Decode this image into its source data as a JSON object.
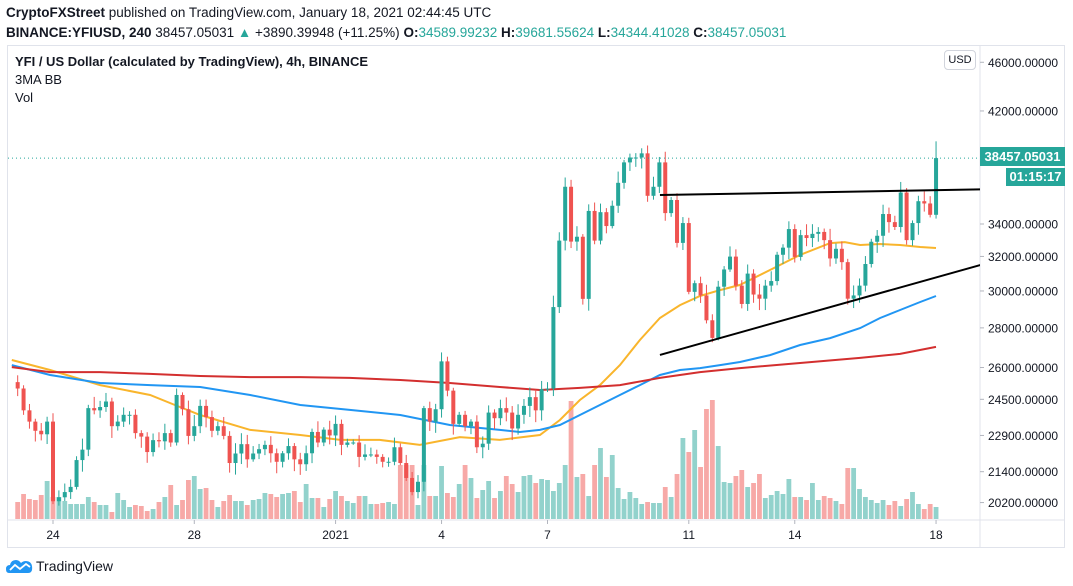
{
  "header": {
    "publisher": "CryptoFXStreet",
    "published_text": "published on TradingView.com, January 18, 2021 02:44:45 UTC",
    "symbol": "BINANCE:YFIUSD, 240",
    "last": "38457.05031",
    "change": "+3890.39948 (+11.25%)",
    "o_label": "O:",
    "o": "34589.99232",
    "h_label": "H:",
    "h": "39681.55624",
    "l_label": "L:",
    "l": "34344.41028",
    "c_label": "C:",
    "c": "38457.05031"
  },
  "legend": {
    "title": "YFI / US Dollar (calculated by TradingView), 4h, BINANCE",
    "indicator1": "3MA BB",
    "indicator2": "Vol"
  },
  "price_axis": {
    "currency": "USD",
    "last_price_label": "38457.05031",
    "countdown": "01:15:17"
  },
  "footer": {
    "brand": "TradingView"
  },
  "colors": {
    "up": "#26a69a",
    "down": "#ef5350",
    "ma_fast": "#f9b52c",
    "ma_mid": "#2196f3",
    "ma_slow": "#d32f2f",
    "trendline": "#000000",
    "brand": "#2196f3"
  },
  "chart_data": {
    "type": "candlestick",
    "interval": "4h",
    "y_scale": "log",
    "ylim": [
      19800,
      47000
    ],
    "grid": false,
    "y_ticks": [
      "46000.00000",
      "42000.00000",
      "34000.00000",
      "32000.00000",
      "30000.00000",
      "28000.00000",
      "26000.00000",
      "24500.00000",
      "22900.00000",
      "21400.00000",
      "20200.00000"
    ],
    "x_ticks": [
      "24",
      "28",
      "2021",
      "4",
      "7",
      "11",
      "14",
      "18"
    ],
    "first_open": 25300,
    "last_candle": {
      "open": 34589.99232,
      "high": 39681.55624,
      "low": 34344.41028,
      "close": 38457.05031
    },
    "closes": [
      25000,
      24000,
      23500,
      23100,
      22950,
      23500,
      20250,
      20400,
      20600,
      20800,
      21870,
      22300,
      24100,
      24000,
      24150,
      24400,
      23300,
      23500,
      23800,
      23800,
      23000,
      22850,
      22200,
      22700,
      22650,
      23000,
      22600,
      24700,
      24050,
      22880,
      23300,
      24200,
      23700,
      23100,
      23300,
      22880,
      21750,
      22140,
      22530,
      21900,
      22140,
      22320,
      22500,
      22150,
      21800,
      22150,
      22450,
      21900,
      21700,
      22150,
      23050,
      22600,
      23150,
      22900,
      23400,
      22500,
      22600,
      22600,
      22000,
      22100,
      22100,
      22000,
      21800,
      21800,
      22400,
      21750,
      21150,
      20600,
      21000,
      24100,
      23500,
      24050,
      26300,
      24900,
      23400,
      23800,
      23300,
      23500,
      22400,
      22550,
      23900,
      23650,
      24100,
      23900,
      23200,
      23800,
      24200,
      24600,
      24000,
      24970,
      25000,
      29110,
      32960,
      36450,
      32900,
      33200,
      29560,
      34840,
      32960,
      34760,
      33870,
      35180,
      36720,
      38150,
      38500,
      38500,
      38800,
      35840,
      36450,
      38150,
      34700,
      35560,
      32820,
      34060,
      29950,
      30440,
      29750,
      28400,
      27480,
      30240,
      31230,
      31990,
      30300,
      29280,
      30990,
      29800,
      29570,
      30300,
      30560,
      32100,
      32530,
      33680,
      31970,
      33300,
      33120,
      33380,
      33500,
      32990,
      31880,
      32460,
      31660,
      29570,
      29750,
      30300,
      31550,
      32890,
      33260,
      34640,
      34120,
      33810,
      36060,
      32990,
      34060,
      35480,
      35330,
      34589.99232,
      38457.05031
    ],
    "volume_relative": [
      17,
      25,
      20,
      19,
      24,
      38,
      22,
      22,
      18,
      15,
      15,
      15,
      22,
      17,
      14,
      14,
      7,
      26,
      19,
      12,
      14,
      13,
      8,
      10,
      17,
      22,
      34,
      14,
      19,
      39,
      43,
      30,
      31,
      19,
      12,
      18,
      24,
      18,
      18,
      14,
      19,
      20,
      26,
      25,
      22,
      25,
      26,
      28,
      17,
      35,
      21,
      21,
      12,
      20,
      28,
      23,
      18,
      16,
      23,
      23,
      15,
      15,
      16,
      17,
      15,
      54,
      54,
      54,
      14,
      54,
      23,
      23,
      53,
      26,
      22,
      35,
      54,
      41,
      21,
      29,
      38,
      21,
      28,
      43,
      35,
      27,
      43,
      44,
      36,
      40,
      39,
      28,
      36,
      54,
      118,
      42,
      45,
      23,
      54,
      71,
      42,
      64,
      31,
      20,
      27,
      21,
      15,
      17,
      16,
      16,
      32,
      22,
      45,
      81,
      67,
      89,
      52,
      110,
      119,
      73,
      37,
      36,
      43,
      49,
      32,
      36,
      45,
      21,
      24,
      28,
      25,
      40,
      22,
      22,
      19,
      36,
      19,
      23,
      21,
      18,
      15,
      51,
      51,
      30,
      22,
      19,
      16,
      19,
      14,
      18,
      13,
      20,
      27,
      15,
      10,
      15,
      12
    ],
    "moving_averages": [
      {
        "color_key": "ma_fast",
        "points": [
          [
            -1,
            26370
          ],
          [
            5.5,
            25880
          ],
          [
            14,
            25160
          ],
          [
            22.5,
            24700
          ],
          [
            26.7,
            24240
          ],
          [
            31,
            23790
          ],
          [
            39.5,
            23140
          ],
          [
            48,
            22920
          ],
          [
            54.8,
            22710
          ],
          [
            61.5,
            22710
          ],
          [
            68.3,
            22500
          ],
          [
            75.1,
            22830
          ],
          [
            81.9,
            22710
          ],
          [
            88.7,
            22920
          ],
          [
            92.1,
            23570
          ],
          [
            95.5,
            24470
          ],
          [
            98.9,
            25160
          ],
          [
            102.3,
            26120
          ],
          [
            105.7,
            27370
          ],
          [
            109.1,
            28520
          ],
          [
            112.5,
            29220
          ],
          [
            115.9,
            29720
          ],
          [
            119.3,
            30050
          ],
          [
            122.7,
            30340
          ],
          [
            127.8,
            31200
          ],
          [
            132.9,
            32090
          ],
          [
            138,
            32810
          ],
          [
            140.5,
            32870
          ],
          [
            143.1,
            32690
          ],
          [
            146.5,
            32750
          ],
          [
            149.9,
            32690
          ],
          [
            153.3,
            32570
          ],
          [
            156,
            32510
          ]
        ]
      },
      {
        "color_key": "ma_mid",
        "points": [
          [
            -1,
            26120
          ],
          [
            5.5,
            25640
          ],
          [
            14,
            25260
          ],
          [
            22.5,
            25160
          ],
          [
            31,
            25070
          ],
          [
            39.5,
            24700
          ],
          [
            48,
            24240
          ],
          [
            56.4,
            24020
          ],
          [
            65,
            23790
          ],
          [
            73.4,
            23350
          ],
          [
            81.9,
            23140
          ],
          [
            85.3,
            23050
          ],
          [
            88.7,
            23140
          ],
          [
            92.1,
            23350
          ],
          [
            95.5,
            23790
          ],
          [
            98.9,
            24240
          ],
          [
            102.3,
            24700
          ],
          [
            105.7,
            25160
          ],
          [
            109.1,
            25640
          ],
          [
            112.5,
            25880
          ],
          [
            115.9,
            25970
          ],
          [
            119.3,
            26120
          ],
          [
            122.7,
            26270
          ],
          [
            127.8,
            26610
          ],
          [
            132.9,
            27120
          ],
          [
            138,
            27470
          ],
          [
            143.1,
            27990
          ],
          [
            146.5,
            28520
          ],
          [
            149.9,
            28950
          ],
          [
            153.3,
            29390
          ],
          [
            156,
            29720
          ]
        ]
      },
      {
        "color_key": "ma_slow",
        "points": [
          [
            -1,
            26020
          ],
          [
            5.5,
            25780
          ],
          [
            14,
            25780
          ],
          [
            22.5,
            25690
          ],
          [
            31,
            25590
          ],
          [
            39.5,
            25540
          ],
          [
            48,
            25540
          ],
          [
            56.4,
            25500
          ],
          [
            65,
            25400
          ],
          [
            73.4,
            25260
          ],
          [
            81.9,
            25070
          ],
          [
            88.7,
            24930
          ],
          [
            95.5,
            25030
          ],
          [
            102.3,
            25160
          ],
          [
            109.1,
            25500
          ],
          [
            115.9,
            25780
          ],
          [
            122.7,
            25970
          ],
          [
            132.9,
            26220
          ],
          [
            143.1,
            26470
          ],
          [
            149.9,
            26670
          ],
          [
            156,
            27020
          ]
        ]
      }
    ],
    "trendlines": [
      {
        "name": "resistance",
        "from": [
          109.1,
          35890
        ],
        "to": [
          163.5,
          36270
        ]
      },
      {
        "name": "ascending-support",
        "from": [
          109.1,
          26620
        ],
        "to": [
          163.5,
          31490
        ]
      }
    ]
  }
}
